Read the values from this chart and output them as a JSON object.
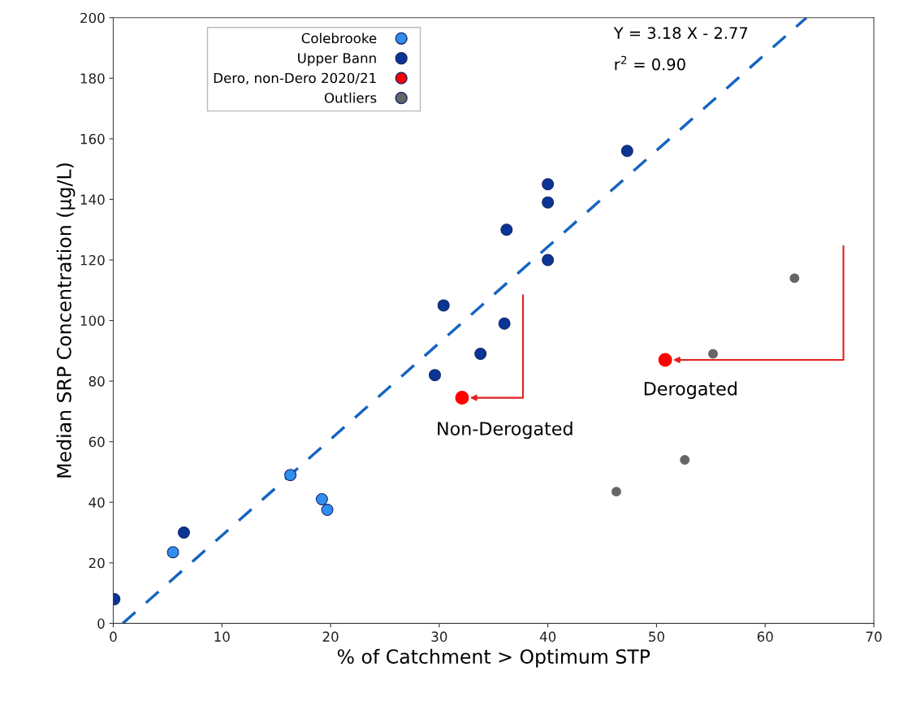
{
  "chart_data": {
    "type": "scatter",
    "xlabel": "% of Catchment > Optimum STP",
    "ylabel": "Median SRP Concentration (µg/L)",
    "xlim": [
      0,
      70
    ],
    "xticks": [
      0,
      10,
      20,
      30,
      40,
      50,
      60,
      70
    ],
    "ylim": [
      0,
      200
    ],
    "yticks": [
      0,
      20,
      40,
      60,
      80,
      100,
      120,
      140,
      160,
      180,
      200
    ],
    "grid": false,
    "legend": "top left",
    "marker": "circle",
    "series": [
      {
        "name": "Colebrooke",
        "color": "#2f8ff0",
        "x": [
          5.5,
          16.3,
          19.2,
          19.7
        ],
        "values": [
          23.5,
          49,
          41,
          37.5
        ]
      },
      {
        "name": "Upper Bann",
        "color": "#0b3594",
        "x": [
          0.1,
          6.5,
          29.6,
          30.4,
          33.8,
          36.0,
          36.2,
          40.0,
          40.0,
          40.0,
          47.3
        ],
        "values": [
          8,
          30,
          82,
          105,
          89,
          99,
          130,
          145,
          139,
          120,
          156
        ]
      },
      {
        "name": "Dero, non-Dero 2020/21",
        "color": "#ff0000",
        "x": [
          32.1,
          50.8
        ],
        "values": [
          74.5,
          87
        ]
      },
      {
        "name": "Outliers",
        "color": "#666666",
        "x": [
          46.3,
          52.6,
          55.2,
          62.7
        ],
        "values": [
          43.5,
          54,
          89,
          114
        ]
      },
      {
        "type": "line",
        "line_style": "dashed",
        "marker": "none",
        "color": "#1565c0",
        "x": [
          0.87,
          63.8
        ],
        "values": [
          0,
          200
        ]
      }
    ],
    "annotations": [
      "Y = 3.18 X - 2.77",
      "r$^{2}$ = 0.90",
      "Non-Derogated",
      "Derogated"
    ]
  }
}
